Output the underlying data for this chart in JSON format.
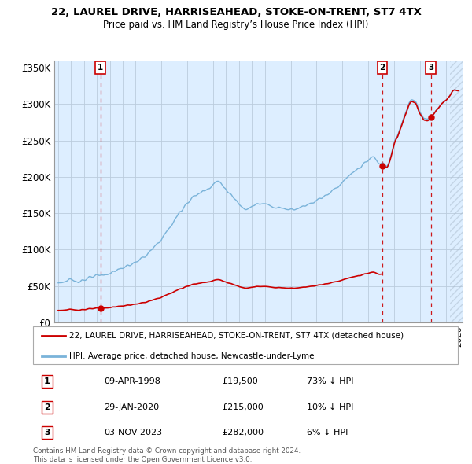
{
  "title": "22, LAUREL DRIVE, HARRISEAHEAD, STOKE-ON-TRENT, ST7 4TX",
  "subtitle": "Price paid vs. HM Land Registry’s House Price Index (HPI)",
  "ylim": [
    0,
    360000
  ],
  "xlim_start": 1994.7,
  "xlim_end": 2026.3,
  "sale_dates": [
    1998.27,
    2020.08,
    2023.84
  ],
  "sale_prices": [
    19500,
    215000,
    282000
  ],
  "sale_labels": [
    "1",
    "2",
    "3"
  ],
  "red_line_color": "#cc0000",
  "blue_line_color": "#7ab3d9",
  "dashed_line_color": "#cc0000",
  "bg_plot_color": "#ddeeff",
  "legend_entries": [
    "22, LAUREL DRIVE, HARRISEAHEAD, STOKE-ON-TRENT, ST7 4TX (detached house)",
    "HPI: Average price, detached house, Newcastle-under-Lyme"
  ],
  "table_rows": [
    [
      "1",
      "09-APR-1998",
      "£19,500",
      "73% ↓ HPI"
    ],
    [
      "2",
      "29-JAN-2020",
      "£215,000",
      "10% ↓ HPI"
    ],
    [
      "3",
      "03-NOV-2023",
      "£282,000",
      "6% ↓ HPI"
    ]
  ],
  "footnote": "Contains HM Land Registry data © Crown copyright and database right 2024.\nThis data is licensed under the Open Government Licence v3.0.",
  "background_color": "#ffffff",
  "grid_color": "#bbccdd"
}
